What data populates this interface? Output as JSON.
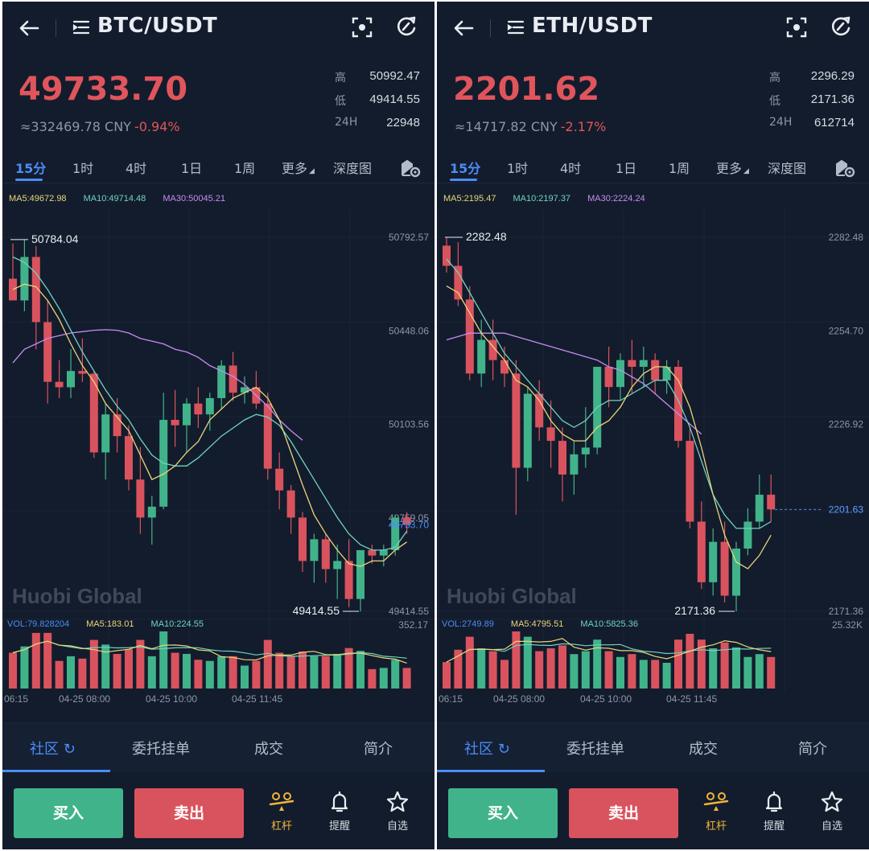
{
  "panels": [
    {
      "pair": "BTC/USDT",
      "price": "49733.70",
      "cny": "≈332469.78 CNY",
      "change": "-0.94%",
      "stats": [
        {
          "k": "高",
          "v": "50992.47"
        },
        {
          "k": "低",
          "v": "49414.55"
        },
        {
          "k": "24H",
          "v": "22948"
        }
      ],
      "intervals": [
        "15分",
        "1时",
        "4时",
        "1日",
        "1周",
        "更多",
        "深度图"
      ],
      "ma": {
        "ma5": "MA5:49672.98",
        "ma10": "MA10:49714.48",
        "ma30": "MA30:50045.21"
      },
      "y_axis": [
        "50792.57",
        "50448.06",
        "50103.56",
        "49759.05",
        "49414.55"
      ],
      "current_price_tag": "49733.70",
      "high_marker": "50784.04",
      "low_marker": "49414.55",
      "watermark": "Huobi Global",
      "vol": {
        "vol": "VOL:79.828204",
        "ma5": "MA5:183.01",
        "ma10": "MA10:224.55",
        "max": "352.17"
      },
      "time_axis": [
        "06:15",
        "04-25 08:00",
        "04-25 10:00",
        "04-25 11:45"
      ],
      "tabs": [
        "社区",
        "委托挂单",
        "成交",
        "简介"
      ],
      "buy": "买入",
      "sell": "卖出",
      "actions": [
        "杠杆",
        "提醒",
        "自选"
      ]
    },
    {
      "pair": "ETH/USDT",
      "price": "2201.62",
      "cny": "≈14717.82 CNY",
      "change": "-2.17%",
      "stats": [
        {
          "k": "高",
          "v": "2296.29"
        },
        {
          "k": "低",
          "v": "2171.36"
        },
        {
          "k": "24H",
          "v": "612714"
        }
      ],
      "intervals": [
        "15分",
        "1时",
        "4时",
        "1日",
        "1周",
        "更多",
        "深度图"
      ],
      "ma": {
        "ma5": "MA5:2195.47",
        "ma10": "MA10:2197.37",
        "ma30": "MA30:2224.24"
      },
      "y_axis": [
        "2282.48",
        "2254.70",
        "2226.92",
        "2201.63",
        "2171.36"
      ],
      "current_price_tag": "2201.63",
      "high_marker": "2282.48",
      "low_marker": "2171.36",
      "watermark": "Huobi Global",
      "vol": {
        "vol": "VOL:2749.89",
        "ma5": "MA5:4795.51",
        "ma10": "MA10:5825.36",
        "max": "25.32K"
      },
      "time_axis": [
        "06:15",
        "04-25 08:00",
        "04-25 10:00",
        "04-25 11:45"
      ],
      "tabs": [
        "社区",
        "委托挂单",
        "成交",
        "简介"
      ],
      "buy": "买入",
      "sell": "卖出",
      "actions": [
        "杠杆",
        "提醒",
        "自选"
      ]
    }
  ],
  "colors": {
    "up": "#41b38b",
    "down": "#d9535e",
    "ma5": "#e8d67a",
    "ma10": "#6fd4c0",
    "ma30": "#c58cf0",
    "accent": "#4b8df8"
  },
  "chart_data": [
    {
      "type": "candlestick",
      "title": "BTC/USDT",
      "interval": "15分",
      "ylim": [
        49414.55,
        50792.57
      ],
      "candles": [
        {
          "o": 50640,
          "h": 50770,
          "l": 50560,
          "c": 50560
        },
        {
          "o": 50560,
          "h": 50784,
          "l": 50520,
          "c": 50720
        },
        {
          "o": 50720,
          "h": 50760,
          "l": 50380,
          "c": 50480
        },
        {
          "o": 50480,
          "h": 50560,
          "l": 50180,
          "c": 50260
        },
        {
          "o": 50260,
          "h": 50340,
          "l": 50200,
          "c": 50240
        },
        {
          "o": 50240,
          "h": 50380,
          "l": 50200,
          "c": 50300
        },
        {
          "o": 50300,
          "h": 50420,
          "l": 50260,
          "c": 50290
        },
        {
          "o": 50290,
          "h": 50300,
          "l": 49980,
          "c": 50000
        },
        {
          "o": 50000,
          "h": 50180,
          "l": 49900,
          "c": 50140
        },
        {
          "o": 50140,
          "h": 50200,
          "l": 50000,
          "c": 50060
        },
        {
          "o": 50060,
          "h": 50100,
          "l": 49860,
          "c": 49900
        },
        {
          "o": 49900,
          "h": 50020,
          "l": 49700,
          "c": 49760
        },
        {
          "o": 49760,
          "h": 49840,
          "l": 49660,
          "c": 49800
        },
        {
          "o": 49800,
          "h": 50220,
          "l": 49790,
          "c": 50120
        },
        {
          "o": 50120,
          "h": 50230,
          "l": 50020,
          "c": 50100
        },
        {
          "o": 50100,
          "h": 50200,
          "l": 50000,
          "c": 50180
        },
        {
          "o": 50180,
          "h": 50240,
          "l": 50090,
          "c": 50140
        },
        {
          "o": 50140,
          "h": 50220,
          "l": 50080,
          "c": 50200
        },
        {
          "o": 50200,
          "h": 50340,
          "l": 50160,
          "c": 50320
        },
        {
          "o": 50320,
          "h": 50370,
          "l": 50190,
          "c": 50220
        },
        {
          "o": 50220,
          "h": 50280,
          "l": 50180,
          "c": 50240
        },
        {
          "o": 50240,
          "h": 50300,
          "l": 50160,
          "c": 50180
        },
        {
          "o": 50180,
          "h": 50220,
          "l": 49900,
          "c": 49940
        },
        {
          "o": 49940,
          "h": 50000,
          "l": 49790,
          "c": 49860
        },
        {
          "o": 49860,
          "h": 49880,
          "l": 49700,
          "c": 49760
        },
        {
          "o": 49760,
          "h": 49780,
          "l": 49560,
          "c": 49600
        },
        {
          "o": 49600,
          "h": 49700,
          "l": 49520,
          "c": 49680
        },
        {
          "o": 49680,
          "h": 49700,
          "l": 49520,
          "c": 49570
        },
        {
          "o": 49570,
          "h": 49660,
          "l": 49460,
          "c": 49600
        },
        {
          "o": 49600,
          "h": 49680,
          "l": 49430,
          "c": 49460
        },
        {
          "o": 49460,
          "h": 49640,
          "l": 49414,
          "c": 49640
        },
        {
          "o": 49640,
          "h": 49660,
          "l": 49590,
          "c": 49620
        },
        {
          "o": 49620,
          "h": 49660,
          "l": 49580,
          "c": 49640
        },
        {
          "o": 49640,
          "h": 49770,
          "l": 49620,
          "c": 49760
        },
        {
          "o": 49760,
          "h": 49780,
          "l": 49700,
          "c": 49734
        }
      ],
      "ma5": [
        50600,
        50620,
        50610,
        50560,
        50490,
        50400,
        50320,
        50260,
        50180,
        50130,
        50080,
        49990,
        49900,
        49920,
        49950,
        50000,
        50040,
        50120,
        50160,
        50200,
        50220,
        50240,
        50200,
        50120,
        50000,
        49880,
        49770,
        49700,
        49640,
        49590,
        49580,
        49600,
        49600,
        49640,
        49670
      ],
      "ma10": [
        50720,
        50700,
        50660,
        50600,
        50530,
        50450,
        50370,
        50300,
        50230,
        50170,
        50120,
        50050,
        49990,
        49960,
        49950,
        49950,
        49980,
        50020,
        50060,
        50090,
        50120,
        50140,
        50130,
        50100,
        50040,
        49970,
        49900,
        49830,
        49760,
        49700,
        49660,
        49640,
        49640,
        49650,
        49710
      ],
      "ma30": [
        50330,
        50380,
        50400,
        50420,
        50430,
        50440,
        50445,
        50450,
        50452,
        50450,
        50440,
        50420,
        50410,
        50400,
        50380,
        50370,
        50350,
        50320,
        50300,
        50280,
        50250,
        50210,
        50170,
        50120,
        50080,
        50045
      ]
    },
    {
      "type": "candlestick",
      "title": "ETH/USDT",
      "interval": "15分",
      "ylim": [
        2171.36,
        2282.48
      ],
      "candles": [
        {
          "o": 2280,
          "h": 2282.48,
          "l": 2272,
          "c": 2274
        },
        {
          "o": 2274,
          "h": 2281,
          "l": 2262,
          "c": 2264
        },
        {
          "o": 2264,
          "h": 2268,
          "l": 2240,
          "c": 2242
        },
        {
          "o": 2242,
          "h": 2258,
          "l": 2238,
          "c": 2252
        },
        {
          "o": 2252,
          "h": 2258,
          "l": 2240,
          "c": 2246
        },
        {
          "o": 2246,
          "h": 2250,
          "l": 2238,
          "c": 2242
        },
        {
          "o": 2242,
          "h": 2246,
          "l": 2200,
          "c": 2214
        },
        {
          "o": 2214,
          "h": 2238,
          "l": 2210,
          "c": 2236
        },
        {
          "o": 2236,
          "h": 2240,
          "l": 2222,
          "c": 2226
        },
        {
          "o": 2226,
          "h": 2234,
          "l": 2214,
          "c": 2222
        },
        {
          "o": 2222,
          "h": 2226,
          "l": 2204,
          "c": 2212
        },
        {
          "o": 2212,
          "h": 2222,
          "l": 2206,
          "c": 2218
        },
        {
          "o": 2218,
          "h": 2232,
          "l": 2214,
          "c": 2220
        },
        {
          "o": 2220,
          "h": 2244,
          "l": 2218,
          "c": 2244
        },
        {
          "o": 2244,
          "h": 2250,
          "l": 2232,
          "c": 2238
        },
        {
          "o": 2238,
          "h": 2248,
          "l": 2234,
          "c": 2246
        },
        {
          "o": 2246,
          "h": 2252,
          "l": 2236,
          "c": 2244
        },
        {
          "o": 2244,
          "h": 2250,
          "l": 2238,
          "c": 2246
        },
        {
          "o": 2246,
          "h": 2248,
          "l": 2236,
          "c": 2240
        },
        {
          "o": 2240,
          "h": 2246,
          "l": 2236,
          "c": 2244
        },
        {
          "o": 2244,
          "h": 2246,
          "l": 2220,
          "c": 2222
        },
        {
          "o": 2222,
          "h": 2226,
          "l": 2196,
          "c": 2198
        },
        {
          "o": 2198,
          "h": 2204,
          "l": 2178,
          "c": 2180
        },
        {
          "o": 2180,
          "h": 2196,
          "l": 2176,
          "c": 2192
        },
        {
          "o": 2192,
          "h": 2198,
          "l": 2174,
          "c": 2176
        },
        {
          "o": 2176,
          "h": 2192,
          "l": 2171.36,
          "c": 2190
        },
        {
          "o": 2190,
          "h": 2202,
          "l": 2188,
          "c": 2198
        },
        {
          "o": 2198,
          "h": 2212,
          "l": 2196,
          "c": 2206
        },
        {
          "o": 2206,
          "h": 2212,
          "l": 2198,
          "c": 2201.63
        }
      ],
      "ma5": [
        2268,
        2266,
        2260,
        2254,
        2250,
        2246,
        2240,
        2238,
        2234,
        2228,
        2224,
        2222,
        2222,
        2226,
        2228,
        2232,
        2238,
        2242,
        2244,
        2244,
        2240,
        2232,
        2220,
        2206,
        2194,
        2186,
        2184,
        2188,
        2194
      ],
      "ma10": [
        2276,
        2272,
        2266,
        2260,
        2254,
        2248,
        2244,
        2240,
        2236,
        2232,
        2228,
        2226,
        2228,
        2232,
        2234,
        2234,
        2236,
        2238,
        2240,
        2240,
        2234,
        2226,
        2216,
        2206,
        2200,
        2196,
        2196,
        2196,
        2198
      ],
      "ma30": [
        2252,
        2253,
        2254,
        2254,
        2254,
        2254,
        2253,
        2252,
        2251,
        2250,
        2249,
        2248,
        2247,
        2246,
        2244,
        2243,
        2241,
        2239,
        2236,
        2233,
        2230,
        2227,
        2224
      ]
    }
  ]
}
